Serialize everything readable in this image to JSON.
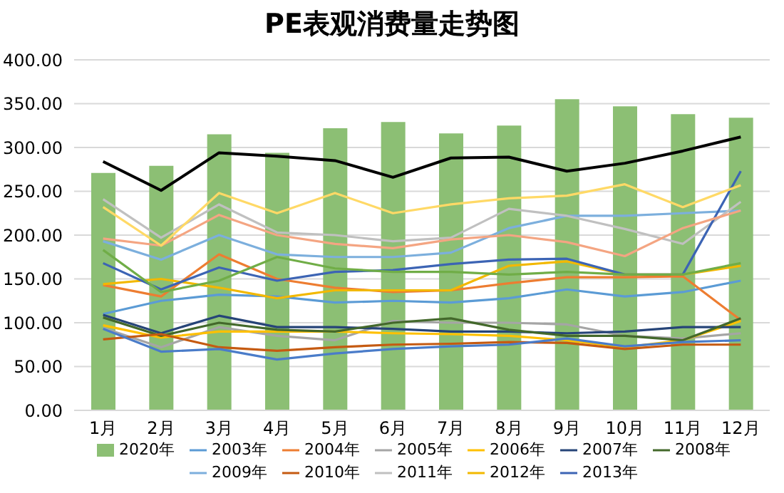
{
  "chart_data": {
    "type": "bar",
    "title": "PE表观消费量走势图",
    "categories": [
      "1月",
      "2月",
      "3月",
      "4月",
      "5月",
      "6月",
      "7月",
      "8月",
      "9月",
      "10月",
      "11月",
      "12月"
    ],
    "ylim": [
      0,
      400
    ],
    "yticks": [
      {
        "value": 0,
        "label": "0.00"
      },
      {
        "value": 50,
        "label": "50.00"
      },
      {
        "value": 100,
        "label": "100.00"
      },
      {
        "value": 150,
        "label": "150.00"
      },
      {
        "value": 200,
        "label": "200.00"
      },
      {
        "value": 250,
        "label": "250.00"
      },
      {
        "value": 300,
        "label": "300.00"
      },
      {
        "value": 350,
        "label": "350.00"
      },
      {
        "value": 400,
        "label": "400.00"
      }
    ],
    "grid": "y",
    "legend": "bottom",
    "series": [
      {
        "name": "2020年",
        "color": "#8cbf74",
        "values": [
          271,
          279,
          315,
          294,
          322,
          329,
          316,
          325,
          355,
          347,
          338,
          334
        ]
      },
      {
        "name": "2003年",
        "type": "line",
        "color": "#5b9bd5",
        "values": [
          110,
          125,
          132,
          130,
          123,
          125,
          123,
          128,
          138,
          130,
          135,
          148
        ]
      },
      {
        "name": "2004年",
        "type": "line",
        "color": "#ed7d31",
        "values": [
          143,
          130,
          178,
          150,
          140,
          135,
          137,
          145,
          152,
          152,
          153,
          103
        ]
      },
      {
        "name": "2005年",
        "type": "line",
        "color": "#a5a5a5",
        "values": [
          94,
          72,
          95,
          85,
          80,
          102,
          100,
          100,
          98,
          85,
          82,
          88
        ]
      },
      {
        "name": "2006年",
        "type": "line",
        "color": "#ffc000",
        "values": [
          97,
          83,
          90,
          90,
          90,
          88,
          87,
          85,
          80,
          72,
          80,
          102
        ]
      },
      {
        "name": "2007年",
        "type": "line",
        "color": "#264478",
        "values": [
          109,
          88,
          108,
          95,
          95,
          93,
          90,
          90,
          88,
          90,
          95,
          95
        ]
      },
      {
        "name": "2008年",
        "type": "line",
        "color": "#43682b",
        "values": [
          106,
          85,
          100,
          92,
          90,
          100,
          105,
          92,
          85,
          85,
          80,
          105
        ]
      },
      {
        "name": "2009年",
        "type": "line",
        "color": "#7cafdd",
        "values": [
          193,
          172,
          200,
          178,
          175,
          175,
          180,
          208,
          222,
          222,
          225,
          228
        ]
      },
      {
        "name": "2010年",
        "type": "line",
        "color": "#c55a11",
        "values": [
          81,
          87,
          72,
          68,
          72,
          75,
          76,
          78,
          77,
          70,
          75,
          75
        ]
      },
      {
        "name": "2011年",
        "type": "line",
        "color": "#c0c0c0",
        "values": [
          241,
          197,
          235,
          203,
          200,
          193,
          197,
          230,
          222,
          207,
          190,
          238
        ]
      },
      {
        "name": "2012年",
        "type": "line",
        "color": "#f2b800",
        "values": [
          144,
          150,
          140,
          128,
          137,
          137,
          137,
          165,
          170,
          155,
          155,
          165
        ]
      },
      {
        "name": "2013年",
        "type": "line",
        "color": "#3c64b4",
        "values": [
          168,
          138,
          163,
          148,
          158,
          160,
          167,
          172,
          173,
          155,
          155,
          273
        ]
      },
      {
        "type": "line",
        "color": "#f4a582",
        "values": [
          196,
          188,
          223,
          200,
          190,
          185,
          195,
          200,
          192,
          176,
          208,
          228
        ]
      },
      {
        "type": "line",
        "color": "#ffd966",
        "values": [
          232,
          188,
          248,
          225,
          248,
          225,
          235,
          242,
          245,
          258,
          232,
          257
        ]
      },
      {
        "type": "line",
        "color": "#70ad47",
        "values": [
          183,
          135,
          148,
          175,
          162,
          158,
          158,
          155,
          158,
          155,
          155,
          168
        ]
      },
      {
        "type": "line",
        "color": "#4a7cc9",
        "values": [
          93,
          67,
          70,
          58,
          65,
          70,
          73,
          75,
          82,
          73,
          78,
          80
        ]
      },
      {
        "type": "line",
        "color": "#000000",
        "values": [
          284,
          251,
          294,
          290,
          285,
          266,
          288,
          289,
          273,
          282,
          296,
          312
        ]
      }
    ]
  }
}
